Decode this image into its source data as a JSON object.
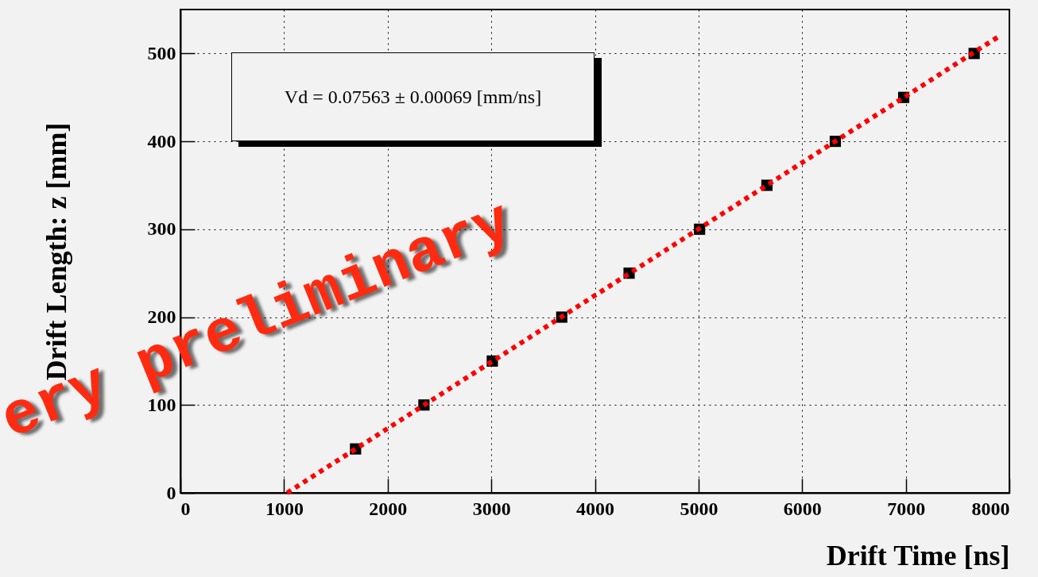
{
  "chart_data": {
    "type": "scatter",
    "xlabel": "Drift Time [ns]",
    "ylabel": "Drift Length: z [mm]",
    "xlim": [
      0,
      8000
    ],
    "xticks": [
      0,
      1000,
      2000,
      3000,
      4000,
      5000,
      6000,
      7000,
      8000
    ],
    "ylim": [
      0,
      550
    ],
    "yticks": [
      0,
      100,
      200,
      300,
      400,
      500
    ],
    "grid": true,
    "series": [
      {
        "color": "#000000",
        "marker": "square",
        "x": [
          1690,
          2350,
          3010,
          3680,
          4330,
          5010,
          5660,
          6320,
          6980,
          7660
        ],
        "values": [
          50,
          100,
          150,
          200,
          250,
          300,
          350,
          400,
          450,
          500
        ]
      },
      {
        "type": "line",
        "color": "#ff0000",
        "line_style": "dotted",
        "x": [
          1030,
          7920
        ],
        "values": [
          0,
          521
        ]
      }
    ],
    "annotations": [
      "Vd = 0.07563 ± 0.00069 [mm/ns]",
      "ery preliminary"
    ]
  }
}
